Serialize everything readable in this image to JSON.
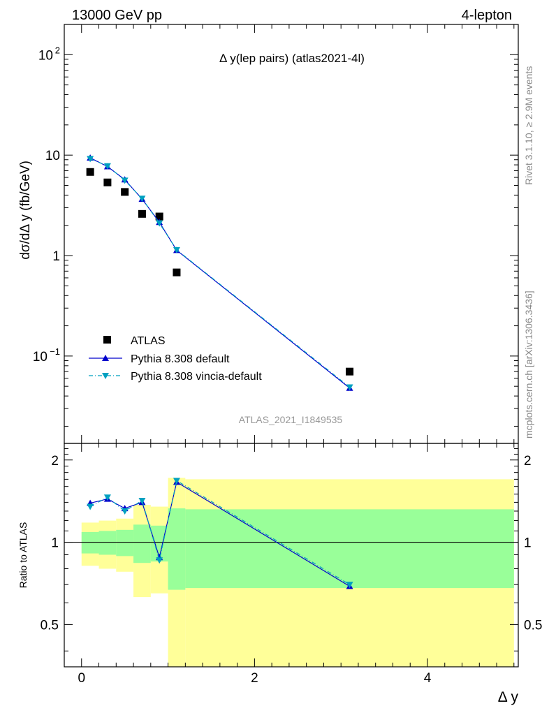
{
  "header": {
    "left": "13000 GeV pp",
    "right": "4-lepton"
  },
  "side_labels": {
    "rivet": "Rivet 3.1.10, ≥ 2.9M events",
    "mcplots": "mcplots.cern.ch [arXiv:1306.3436]"
  },
  "chart_data": [
    {
      "type": "scatter",
      "title": "Δ y(lep pairs) (atlas2021-4l)",
      "ylabel": "dσ/dΔ y (fb/GeV)",
      "watermark": "ATLAS_2021_I1849535",
      "yscale": "log",
      "xlim": [
        -0.2,
        5.05
      ],
      "ylim": [
        0.0135,
        200
      ],
      "y_ticks": [
        {
          "value": 100,
          "label": "10",
          "exp": "2"
        },
        {
          "value": 10,
          "label": "10",
          "exp": ""
        },
        {
          "value": 1,
          "label": "1",
          "exp": ""
        },
        {
          "value": 0.1,
          "label": "10",
          "exp": "−1"
        }
      ],
      "legend": {
        "position": "bottom-left",
        "entries": [
          "ATLAS",
          "Pythia 8.308 default",
          "Pythia 8.308 vincia-default"
        ]
      },
      "series": [
        {
          "name": "ATLAS",
          "color": "#000000",
          "marker": "square",
          "x": [
            0.1,
            0.3,
            0.5,
            0.7,
            0.9,
            1.1,
            3.1
          ],
          "y": [
            6.8,
            5.35,
            4.3,
            2.6,
            2.45,
            0.68,
            0.07
          ]
        },
        {
          "name": "Pythia 8.308 default",
          "color": "#0000cc",
          "marker": "triangle-up",
          "line": "solid",
          "x": [
            0.1,
            0.3,
            0.5,
            0.7,
            0.9,
            1.1,
            3.1
          ],
          "y": [
            9.4,
            7.7,
            5.7,
            3.65,
            2.15,
            1.13,
            0.048
          ]
        },
        {
          "name": "Pythia 8.308 vincia-default",
          "color": "#00a0c0",
          "marker": "triangle-down",
          "line": "dashdot",
          "x": [
            0.1,
            0.3,
            0.5,
            0.7,
            0.9,
            1.1,
            3.1
          ],
          "y": [
            9.2,
            7.8,
            5.6,
            3.7,
            2.1,
            1.14,
            0.049
          ]
        }
      ]
    },
    {
      "type": "line",
      "ylabel": "Ratio to ATLAS",
      "xlabel": "Δ y",
      "xlim": [
        -0.2,
        5.05
      ],
      "ylim": [
        0.35,
        2.3
      ],
      "x_ticks": [
        0,
        2,
        4
      ],
      "y_ticks": [
        0.5,
        1,
        2
      ],
      "reference_line": 1,
      "bands": {
        "inner_color": "#99ff99",
        "outer_color": "#ffff99",
        "bins": [
          {
            "x0": 0.0,
            "x1": 0.2,
            "inner": [
              0.91,
              1.09
            ],
            "outer": [
              0.82,
              1.18
            ]
          },
          {
            "x0": 0.2,
            "x1": 0.4,
            "inner": [
              0.9,
              1.1
            ],
            "outer": [
              0.8,
              1.2
            ]
          },
          {
            "x0": 0.4,
            "x1": 0.6,
            "inner": [
              0.89,
              1.11
            ],
            "outer": [
              0.78,
              1.22
            ]
          },
          {
            "x0": 0.6,
            "x1": 0.8,
            "inner": [
              0.84,
              1.16
            ],
            "outer": [
              0.63,
              1.37
            ]
          },
          {
            "x0": 0.8,
            "x1": 1.0,
            "inner": [
              0.85,
              1.15
            ],
            "outer": [
              0.65,
              1.35
            ]
          },
          {
            "x0": 1.0,
            "x1": 1.2,
            "inner": [
              0.67,
              1.33
            ],
            "outer": [
              0.35,
              1.72
            ]
          },
          {
            "x0": 1.2,
            "x1": 5.0,
            "inner": [
              0.68,
              1.32
            ],
            "outer": [
              0.35,
              1.7
            ]
          }
        ]
      },
      "series": [
        {
          "name": "Pythia 8.308 default",
          "color": "#0000cc",
          "marker": "triangle-up",
          "line": "solid",
          "x": [
            0.1,
            0.3,
            0.5,
            0.7,
            0.9,
            1.1,
            3.1
          ],
          "y": [
            1.39,
            1.44,
            1.33,
            1.4,
            0.88,
            1.66,
            0.69
          ]
        },
        {
          "name": "Pythia 8.308 vincia-default",
          "color": "#00a0c0",
          "marker": "triangle-down",
          "line": "dashdot",
          "x": [
            0.1,
            0.3,
            0.5,
            0.7,
            0.9,
            1.1,
            3.1
          ],
          "y": [
            1.35,
            1.46,
            1.3,
            1.42,
            0.86,
            1.68,
            0.7
          ]
        }
      ]
    }
  ]
}
